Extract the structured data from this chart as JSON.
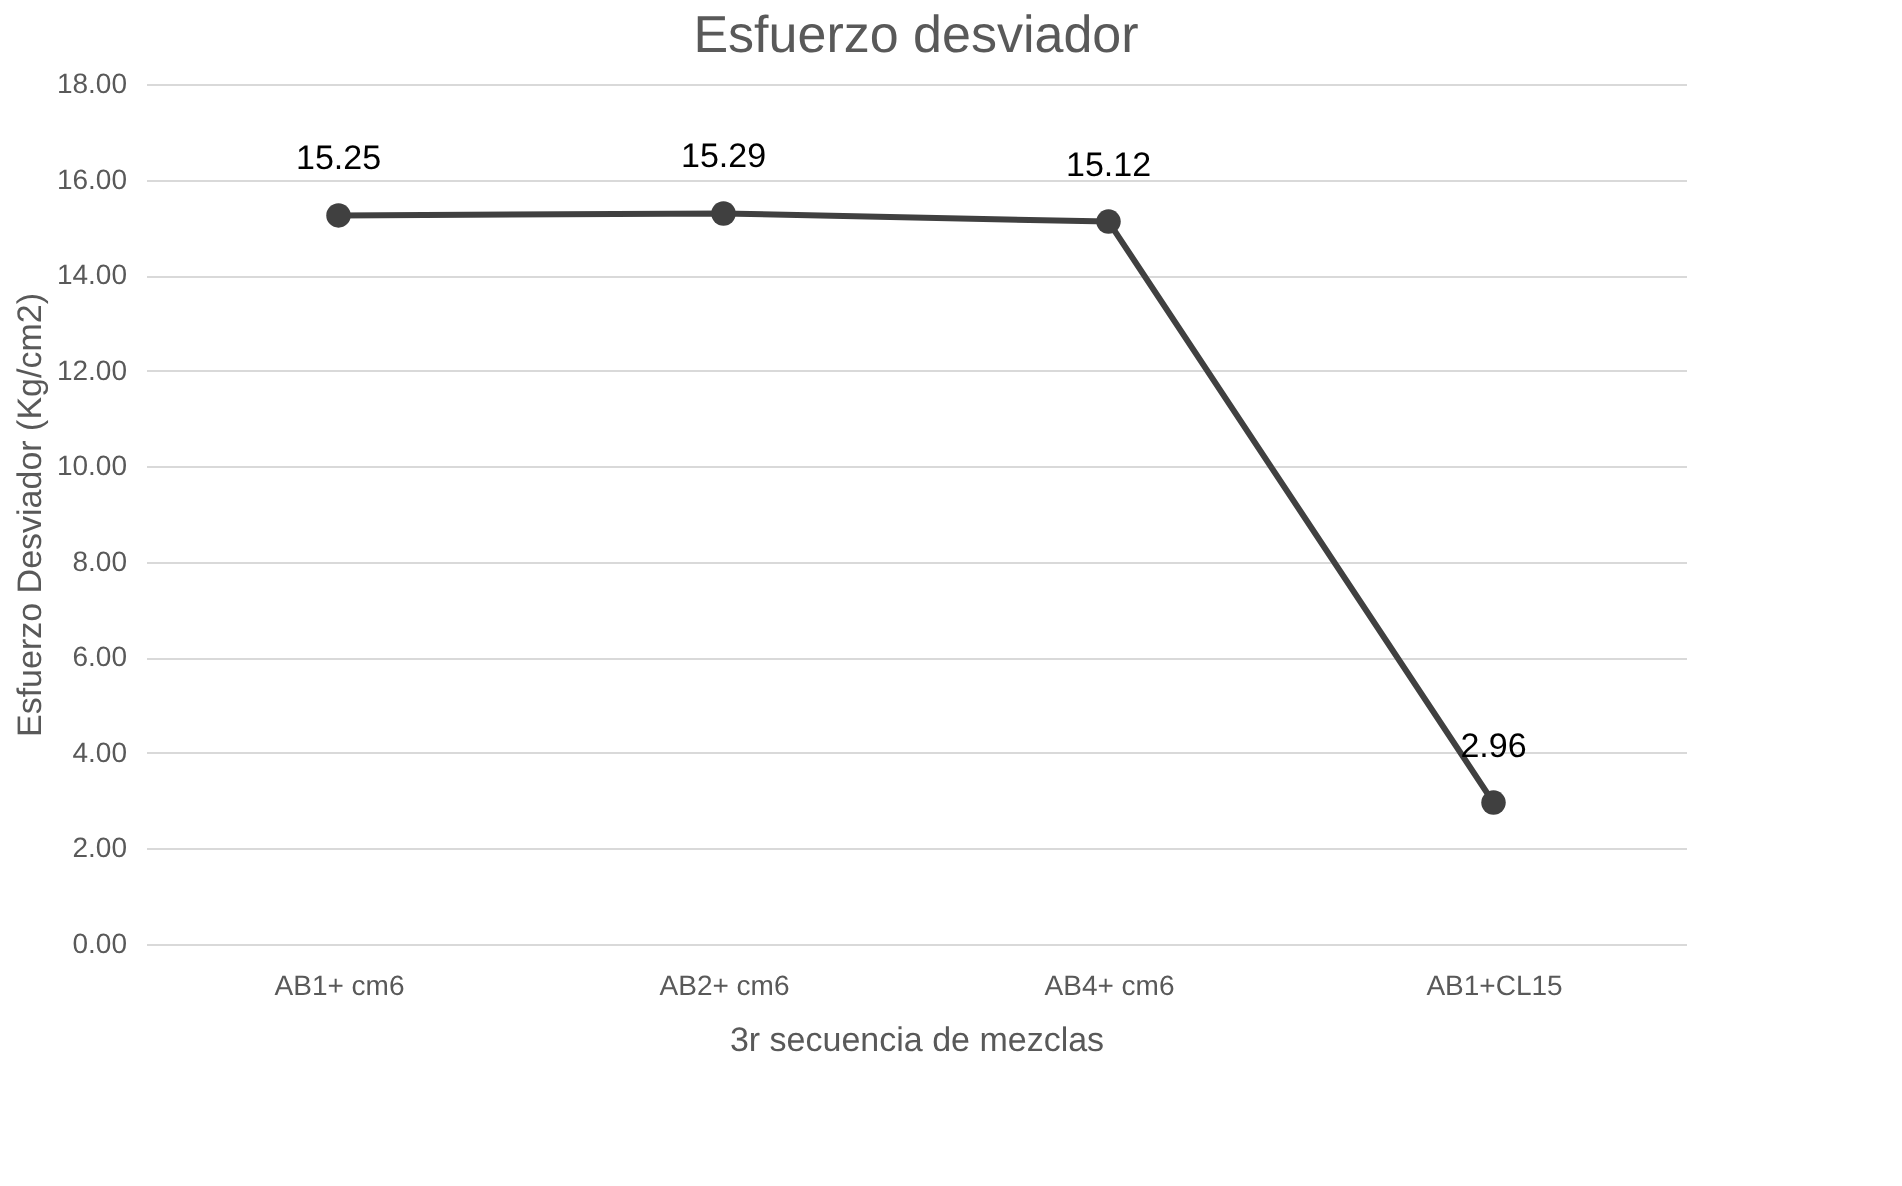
{
  "chart_data": {
    "type": "line",
    "title": "Esfuerzo desviador",
    "xlabel": "3r secuencia de mezclas",
    "ylabel": "Esfuerzo Desviador (Kg/cm2)",
    "categories": [
      "AB1+ cm6",
      "AB2+ cm6",
      "AB4+ cm6",
      "AB1+CL15"
    ],
    "series": [
      {
        "color": "#404040",
        "values": [
          15.25,
          15.29,
          15.12,
          2.96
        ]
      }
    ],
    "ylim": [
      0,
      18
    ],
    "yticks": [
      {
        "value": 0,
        "label": "0.00"
      },
      {
        "value": 2,
        "label": "2.00"
      },
      {
        "value": 4,
        "label": "4.00"
      },
      {
        "value": 6,
        "label": "6.00"
      },
      {
        "value": 8,
        "label": "8.00"
      },
      {
        "value": 10,
        "label": "10.00"
      },
      {
        "value": 12,
        "label": "12.00"
      },
      {
        "value": 14,
        "label": "14.00"
      },
      {
        "value": 16,
        "label": "16.00"
      },
      {
        "value": 18,
        "label": "18.00"
      }
    ],
    "grid": "y",
    "marker": "circle",
    "line_style": "solid",
    "data_labels": true
  }
}
